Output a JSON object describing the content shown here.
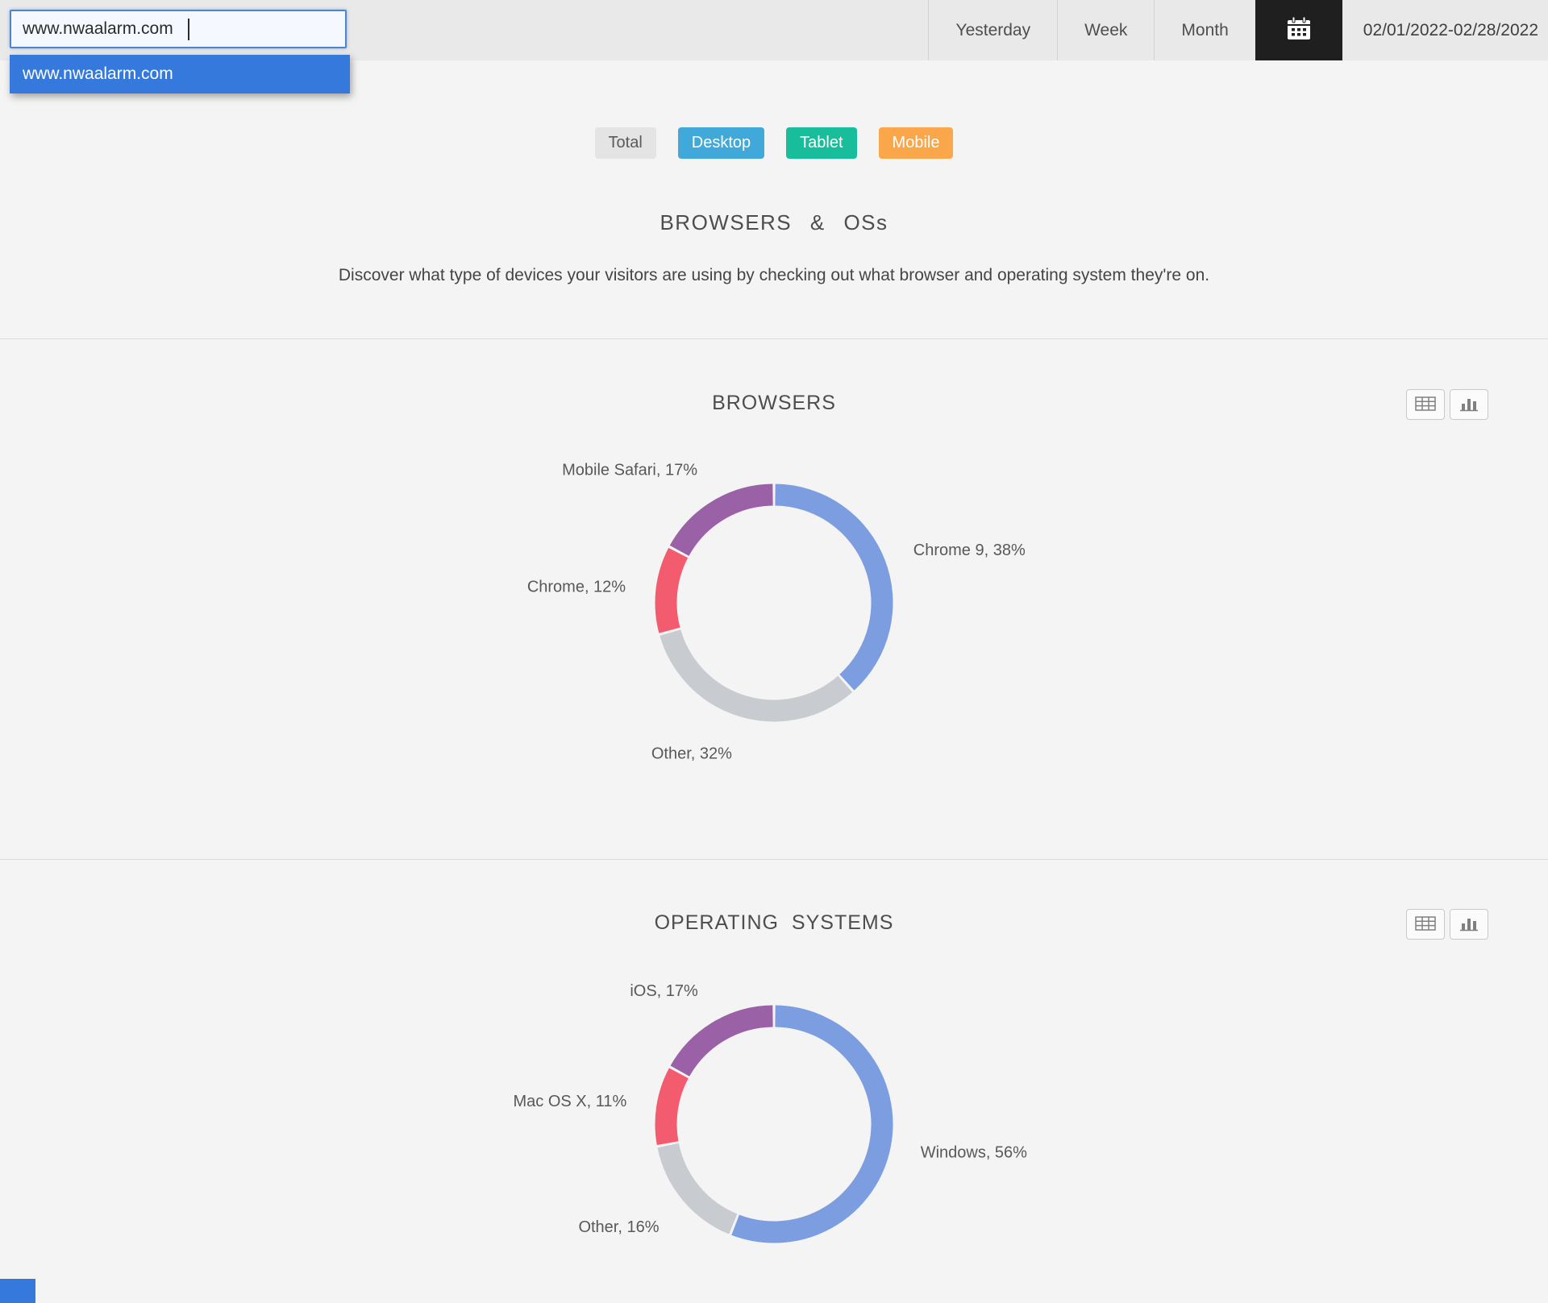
{
  "colors": {
    "accent_blue": "#3579dd",
    "header_bg": "#e9e9e9",
    "page_bg": "#f4f4f4"
  },
  "header": {
    "site_input": {
      "value": "www.nwaalarm.com"
    },
    "dropdown_items": [
      "www.nwaalarm.com"
    ],
    "period_buttons": [
      "Yesterday",
      "Week",
      "Month"
    ],
    "date_range": "02/01/2022-02/28/2022"
  },
  "icons": {
    "calendar": "calendar-icon",
    "table_view": "table-view-icon",
    "chart_view": "bar-chart-view-icon"
  },
  "device_filters": [
    {
      "label": "Total",
      "bg": "#e4e4e4",
      "fg": "#5a5a5a"
    },
    {
      "label": "Desktop",
      "bg": "#41a8da",
      "fg": "#ffffff"
    },
    {
      "label": "Tablet",
      "bg": "#18bd9b",
      "fg": "#ffffff"
    },
    {
      "label": "Mobile",
      "bg": "#f9a74a",
      "fg": "#ffffff"
    }
  ],
  "intro": {
    "title": "BROWSERS & OSs",
    "subtitle": "Discover what type of devices your visitors are using by checking out what browser and operating system they're on."
  },
  "sections": [
    {
      "title": "BROWSERS"
    },
    {
      "title": "OPERATING SYSTEMS"
    }
  ],
  "chart_data": [
    {
      "type": "pie",
      "style": "donut",
      "title": "BROWSERS",
      "legend_position": "outside-labels",
      "slices": [
        {
          "label": "Chrome 9",
          "value": 38,
          "color": "#7c9ee0"
        },
        {
          "label": "Other",
          "value": 32,
          "color": "#c8ccd1"
        },
        {
          "label": "Chrome",
          "value": 12,
          "color": "#f35b6e"
        },
        {
          "label": "Mobile Safari",
          "value": 17,
          "color": "#9a61a6"
        }
      ]
    },
    {
      "type": "pie",
      "style": "donut",
      "title": "OPERATING SYSTEMS",
      "legend_position": "outside-labels",
      "slices": [
        {
          "label": "Windows",
          "value": 56,
          "color": "#7c9ee0"
        },
        {
          "label": "Other",
          "value": 16,
          "color": "#c8ccd1"
        },
        {
          "label": "Mac OS X",
          "value": 11,
          "color": "#f35b6e"
        },
        {
          "label": "iOS",
          "value": 17,
          "color": "#9a61a6"
        }
      ]
    }
  ]
}
